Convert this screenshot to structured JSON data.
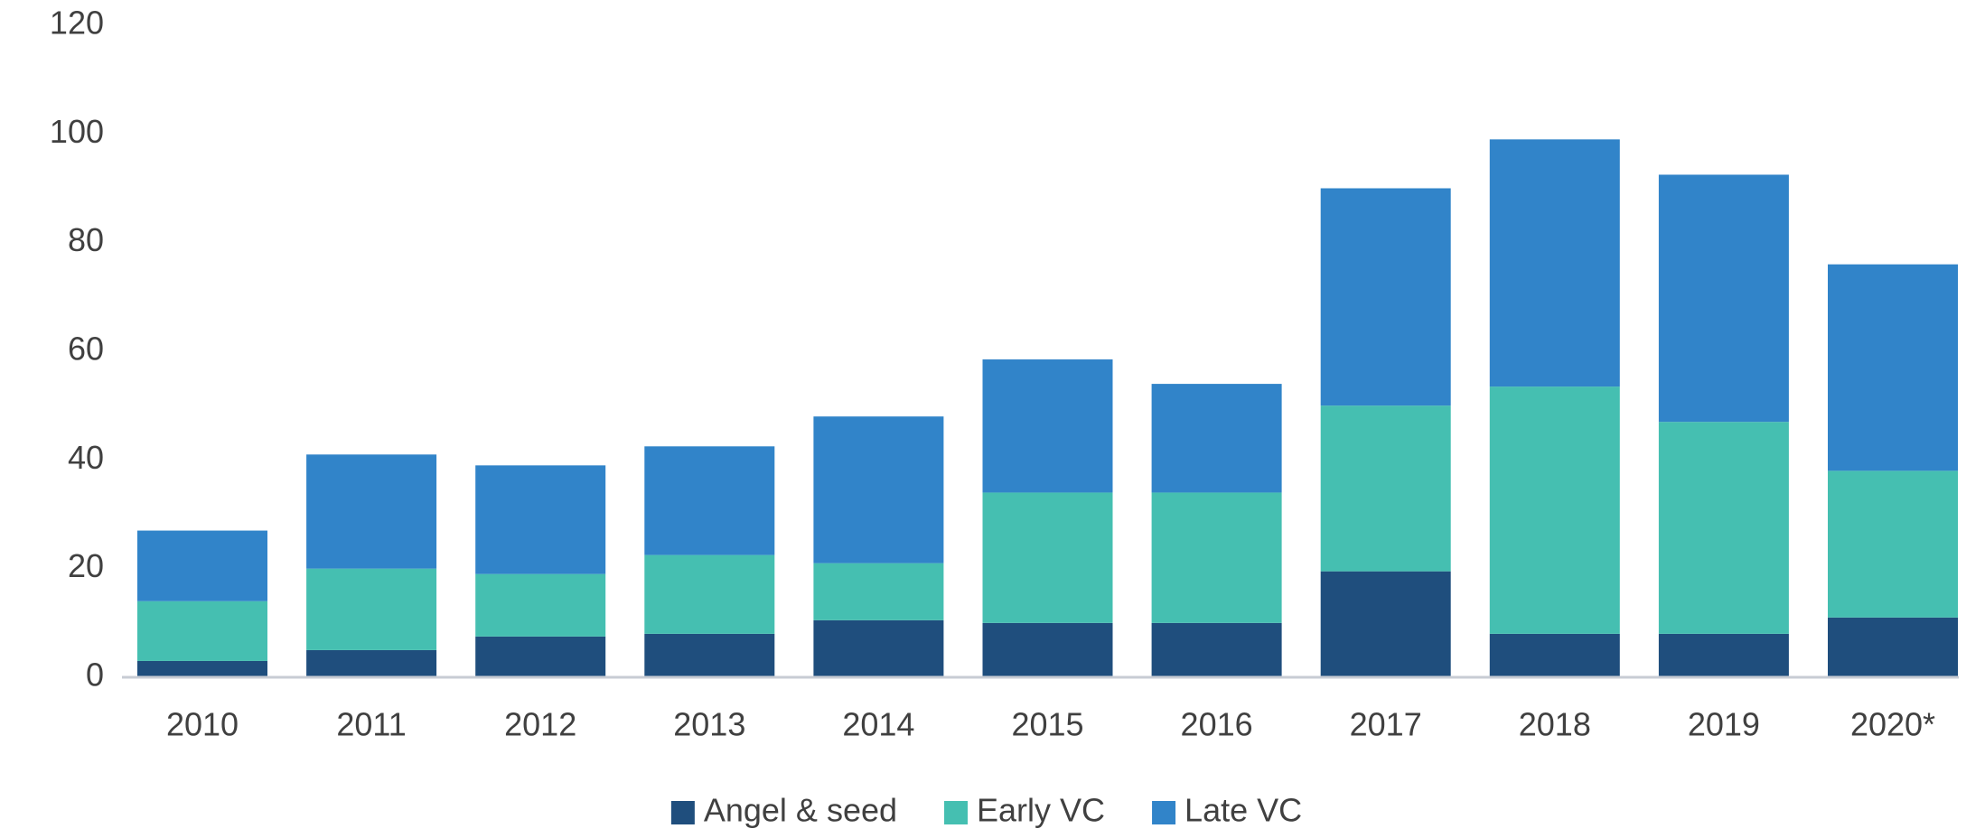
{
  "chart_data": {
    "type": "stacked_bar",
    "categories": [
      "2010",
      "2011",
      "2012",
      "2013",
      "2014",
      "2015",
      "2016",
      "2017",
      "2018",
      "2019",
      "2020*"
    ],
    "series": [
      {
        "name": "Angel & seed",
        "color": "#1f4e7d",
        "values": [
          3,
          5,
          7.5,
          8,
          10.5,
          10,
          10,
          19.5,
          8,
          8,
          11
        ]
      },
      {
        "name": "Early VC",
        "color": "#45bfb1",
        "values": [
          11,
          15,
          11.5,
          14.5,
          10.5,
          24,
          24,
          30.5,
          45.5,
          39,
          27
        ]
      },
      {
        "name": "Late VC",
        "color": "#3184c9",
        "values": [
          13,
          21,
          20,
          20,
          27,
          24.5,
          20,
          40,
          45.5,
          45.5,
          38
        ]
      }
    ],
    "ylim": [
      0,
      120
    ],
    "yticks": [
      0,
      20,
      40,
      60,
      80,
      100,
      120
    ],
    "grid": false,
    "legend": "bottom"
  }
}
